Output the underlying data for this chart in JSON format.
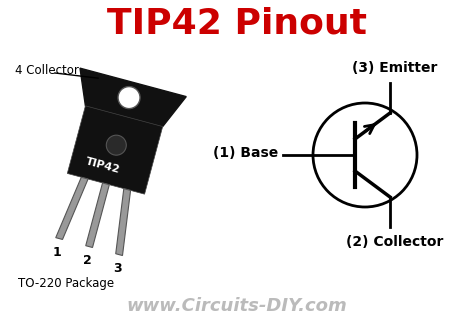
{
  "title": "TIP42 Pinout",
  "title_color": "#cc0000",
  "title_fontsize": 26,
  "bg_color": "#ffffff",
  "transistor_label": "TIP42",
  "package_label": "TO-220 Package",
  "pin_labels": [
    "1",
    "2",
    "3"
  ],
  "pin_names_base": "(1) Base",
  "pin_names_emitter": "(3) Emitter",
  "pin_names_collector": "(2) Collector",
  "collector_tab_label": "4 Collector",
  "website": "www.Circuits-DIY.com",
  "website_color": "#bbbbbb",
  "website_fontsize": 13,
  "body_color": "#111111",
  "pin_color": "#999999",
  "pin_edge_color": "#555555"
}
